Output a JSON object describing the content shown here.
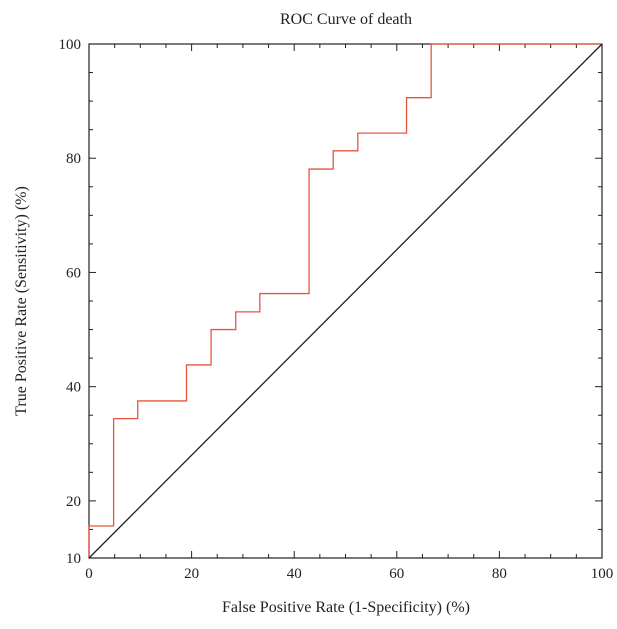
{
  "chart_data": {
    "type": "line",
    "title": "ROC Curve of death",
    "xlabel": "False Positive Rate (1-Specificity) (%)",
    "ylabel": "True Positive Rate (Sensitivity) (%)",
    "xlim": [
      0,
      100
    ],
    "ylim": [
      10,
      100
    ],
    "x_ticks": [
      0,
      20,
      40,
      60,
      80,
      100
    ],
    "y_ticks": [
      10,
      20,
      40,
      60,
      80,
      100
    ],
    "grid": false,
    "series": [
      {
        "kind": "step",
        "color": "#e8553f",
        "points": [
          [
            0,
            10
          ],
          [
            0,
            15.6
          ],
          [
            4.8,
            15.6
          ],
          [
            4.8,
            34.4
          ],
          [
            9.5,
            34.4
          ],
          [
            9.5,
            37.5
          ],
          [
            19,
            37.5
          ],
          [
            19,
            43.8
          ],
          [
            23.8,
            43.8
          ],
          [
            23.8,
            50
          ],
          [
            28.6,
            50
          ],
          [
            28.6,
            53.1
          ],
          [
            33.3,
            53.1
          ],
          [
            33.3,
            56.3
          ],
          [
            42.9,
            56.3
          ],
          [
            42.9,
            78.1
          ],
          [
            47.6,
            78.1
          ],
          [
            47.6,
            81.3
          ],
          [
            52.4,
            81.3
          ],
          [
            52.4,
            84.4
          ],
          [
            61.9,
            84.4
          ],
          [
            61.9,
            90.6
          ],
          [
            66.7,
            90.6
          ],
          [
            66.7,
            100
          ],
          [
            100,
            100
          ]
        ]
      },
      {
        "kind": "reference-diagonal",
        "color": "#222222",
        "points": [
          [
            0,
            10
          ],
          [
            100,
            100
          ]
        ]
      }
    ]
  }
}
